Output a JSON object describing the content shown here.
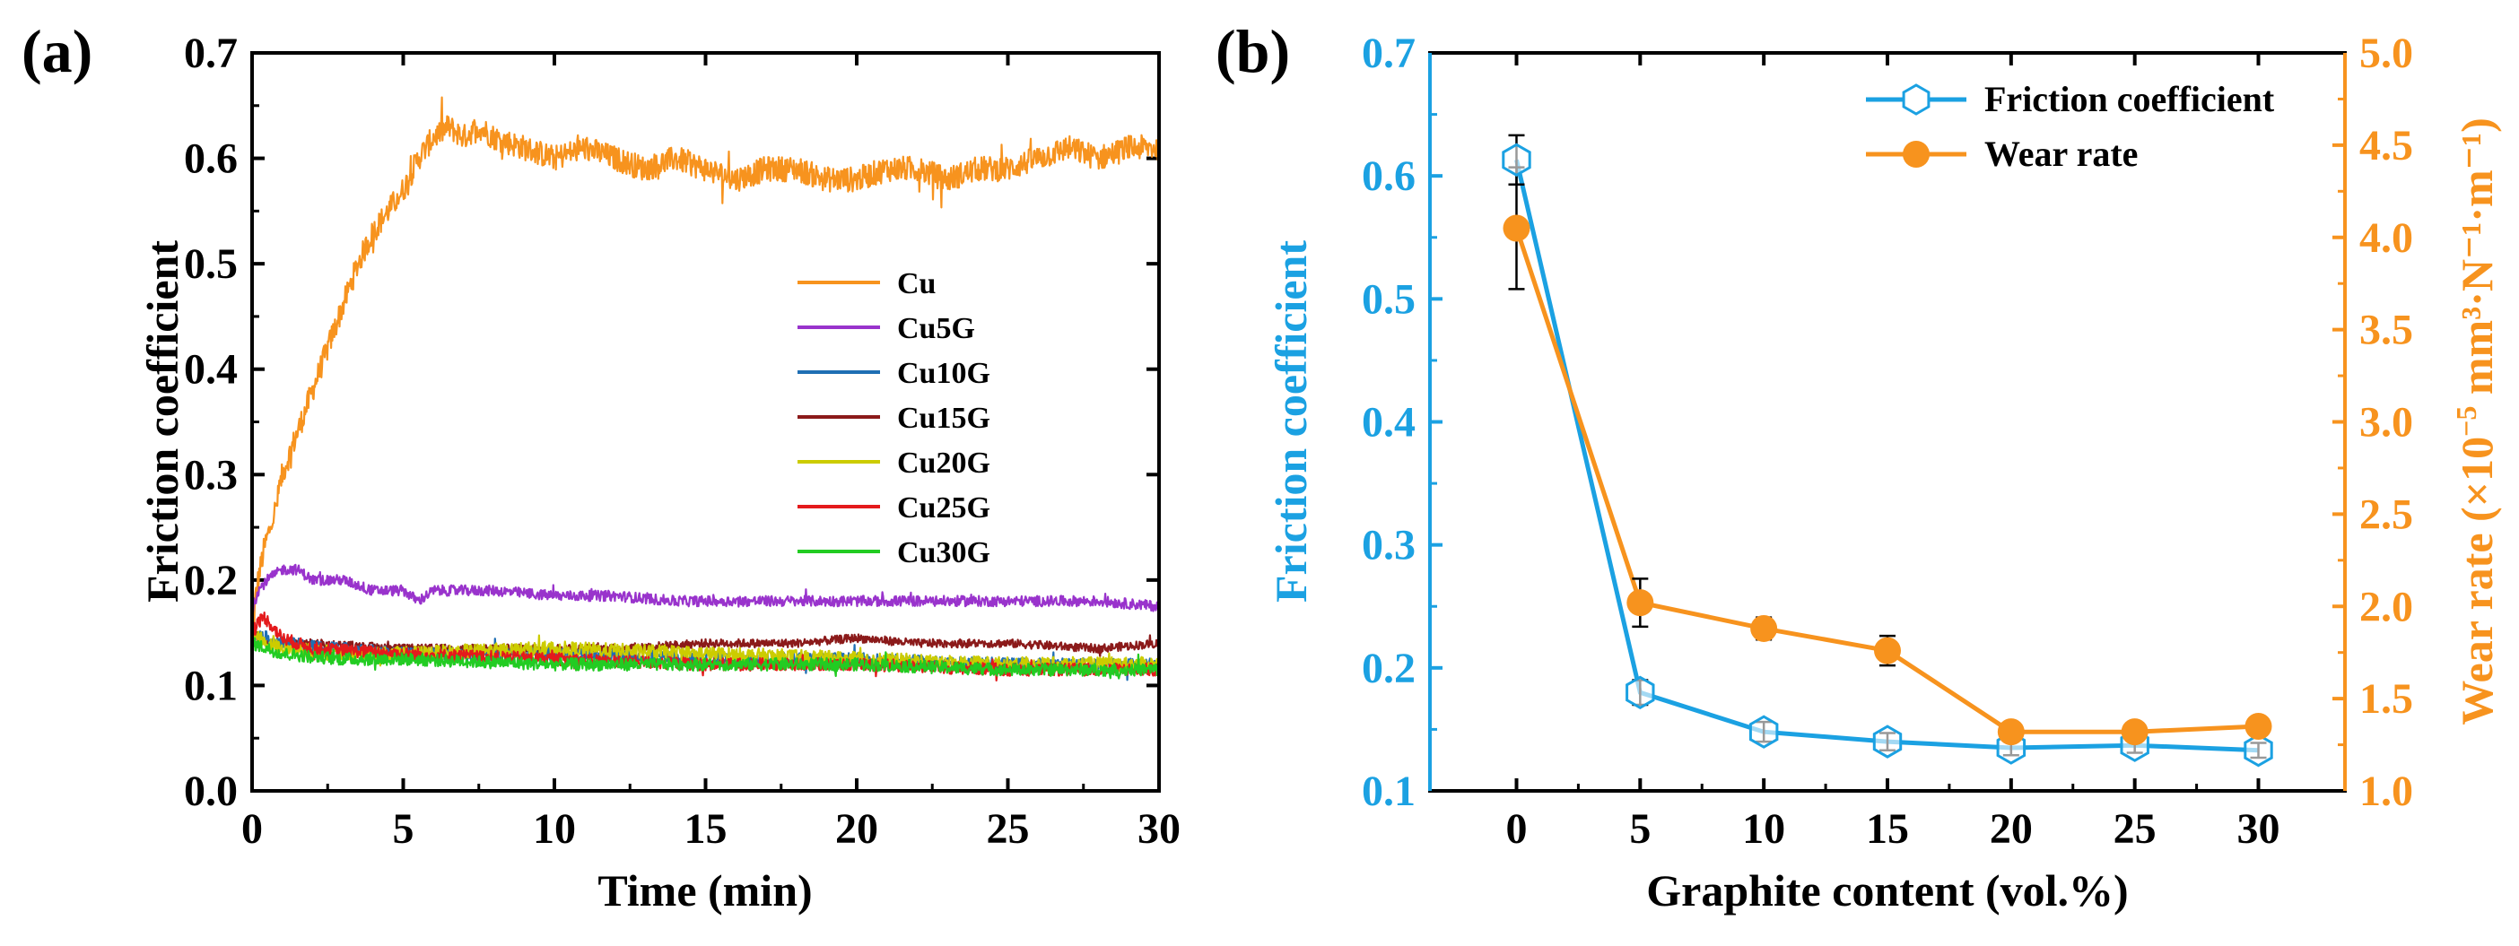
{
  "chart_data": [
    {
      "panel_label": "(a)",
      "type": "line",
      "title": "",
      "xlabel": "Time (min)",
      "ylabel": "Friction coefficient",
      "xlim": [
        0,
        30
      ],
      "ylim": [
        0,
        0.7
      ],
      "xticks": [
        0,
        5,
        10,
        15,
        20,
        25,
        30
      ],
      "yticks": [
        0.0,
        0.1,
        0.2,
        0.3,
        0.4,
        0.5,
        0.6,
        0.7
      ],
      "ytick_labels": [
        "0.0",
        "0.1",
        "0.2",
        "0.3",
        "0.4",
        "0.5",
        "0.6",
        "0.7"
      ],
      "legend_position": "right-center",
      "series": [
        {
          "name": "Cu",
          "color": "#F7931E",
          "noise": 0.012,
          "x": [
            0,
            0.1,
            0.2,
            0.4,
            0.8,
            1,
            1.5,
            2,
            2.5,
            3,
            3.5,
            4,
            4.5,
            5,
            5.5,
            6,
            6.5,
            7,
            7.5,
            8,
            9,
            10,
            11,
            12,
            13,
            14,
            15,
            16,
            17,
            18,
            19,
            20,
            21,
            22,
            23,
            24,
            25,
            26,
            27,
            28,
            29,
            30
          ],
          "y": [
            0.12,
            0.18,
            0.2,
            0.23,
            0.27,
            0.3,
            0.34,
            0.38,
            0.42,
            0.46,
            0.5,
            0.53,
            0.55,
            0.57,
            0.6,
            0.62,
            0.63,
            0.62,
            0.63,
            0.62,
            0.61,
            0.6,
            0.61,
            0.6,
            0.59,
            0.6,
            0.59,
            0.58,
            0.59,
            0.59,
            0.58,
            0.58,
            0.59,
            0.59,
            0.58,
            0.59,
            0.59,
            0.6,
            0.61,
            0.6,
            0.61,
            0.61
          ]
        },
        {
          "name": "Cu5G",
          "color": "#9933CC",
          "noise": 0.005,
          "x": [
            0,
            0.2,
            0.5,
            1,
            1.5,
            2,
            3,
            4,
            5,
            5.5,
            6,
            7,
            8,
            10,
            12,
            14,
            16,
            18,
            20,
            22,
            24,
            26,
            28,
            30
          ],
          "y": [
            0.17,
            0.19,
            0.2,
            0.21,
            0.21,
            0.2,
            0.2,
            0.19,
            0.19,
            0.18,
            0.19,
            0.19,
            0.19,
            0.185,
            0.185,
            0.18,
            0.18,
            0.18,
            0.18,
            0.18,
            0.18,
            0.18,
            0.18,
            0.175
          ]
        },
        {
          "name": "Cu10G",
          "color": "#1F6FB4",
          "noise": 0.006,
          "x": [
            0,
            0.5,
            1,
            3,
            5,
            10,
            15,
            20,
            25,
            30
          ],
          "y": [
            0.15,
            0.145,
            0.14,
            0.135,
            0.13,
            0.13,
            0.125,
            0.125,
            0.12,
            0.12
          ]
        },
        {
          "name": "Cu15G",
          "color": "#8B1A1A",
          "noise": 0.004,
          "x": [
            0,
            0.5,
            1,
            2,
            5,
            8,
            10,
            12,
            15,
            18,
            20,
            22,
            25,
            28,
            30
          ],
          "y": [
            0.15,
            0.14,
            0.14,
            0.14,
            0.135,
            0.135,
            0.135,
            0.135,
            0.14,
            0.14,
            0.145,
            0.14,
            0.14,
            0.135,
            0.14
          ]
        },
        {
          "name": "Cu20G",
          "color": "#CCCC00",
          "noise": 0.007,
          "x": [
            0,
            0.5,
            1,
            3,
            5,
            10,
            15,
            20,
            25,
            30
          ],
          "y": [
            0.15,
            0.14,
            0.135,
            0.13,
            0.13,
            0.135,
            0.13,
            0.125,
            0.12,
            0.12
          ]
        },
        {
          "name": "Cu25G",
          "color": "#E41A1C",
          "noise": 0.006,
          "x": [
            0,
            0.2,
            0.4,
            0.7,
            1,
            2,
            5,
            10,
            15,
            20,
            25,
            30
          ],
          "y": [
            0.15,
            0.16,
            0.165,
            0.155,
            0.145,
            0.135,
            0.13,
            0.125,
            0.12,
            0.12,
            0.115,
            0.115
          ]
        },
        {
          "name": "Cu30G",
          "color": "#22CC22",
          "noise": 0.006,
          "x": [
            0,
            0.5,
            1,
            3,
            5,
            10,
            15,
            20,
            25,
            30
          ],
          "y": [
            0.14,
            0.135,
            0.13,
            0.125,
            0.125,
            0.12,
            0.12,
            0.12,
            0.115,
            0.115
          ]
        }
      ]
    },
    {
      "panel_label": "(b)",
      "type": "line",
      "title": "",
      "xlabel": "Graphite content (vol.%)",
      "categories": [
        "0",
        "5",
        "10",
        "15",
        "20",
        "25",
        "30"
      ],
      "xlim": [
        -3.5,
        33.5
      ],
      "ylabel": "Friction coefficient",
      "ylim": [
        0.1,
        0.7
      ],
      "yticks": [
        0.1,
        0.2,
        0.3,
        0.4,
        0.5,
        0.6,
        0.7
      ],
      "ytick_labels": [
        "0.1",
        "0.2",
        "0.3",
        "0.4",
        "0.5",
        "0.6",
        "0.7"
      ],
      "ylabel_right_prefix": "Wear rate (×10",
      "ylabel_right_exp": "−5",
      "ylabel_right_units": " mm³·N⁻¹·m⁻¹)",
      "ylim_right": [
        1.0,
        5.0
      ],
      "yticks_right": [
        1.0,
        1.5,
        2.0,
        2.5,
        3.0,
        3.5,
        4.0,
        4.5,
        5.0
      ],
      "ytick_labels_right": [
        "1.0",
        "1.5",
        "2.0",
        "2.5",
        "3.0",
        "3.5",
        "4.0",
        "4.5",
        "5.0"
      ],
      "legend_position": "top-right",
      "series": [
        {
          "name": "Friction coefficient",
          "axis": "left",
          "color": "#1BA1E2",
          "marker": "hexagon-open",
          "x": [
            0,
            5,
            10,
            15,
            20,
            25,
            30
          ],
          "values": [
            0.613,
            0.18,
            0.148,
            0.14,
            0.135,
            0.137,
            0.133
          ],
          "errors": [
            0.02,
            0.01,
            0.008,
            0.007,
            0.006,
            0.006,
            0.006
          ]
        },
        {
          "name": "Wear rate",
          "axis": "right",
          "color": "#F7931E",
          "marker": "circle-filled",
          "x": [
            0,
            5,
            10,
            15,
            20,
            25,
            30
          ],
          "values": [
            4.05,
            2.02,
            1.88,
            1.76,
            1.32,
            1.32,
            1.35
          ],
          "errors": [
            0.33,
            0.13,
            0.06,
            0.08,
            0.04,
            0.04,
            0.04
          ]
        }
      ]
    }
  ]
}
